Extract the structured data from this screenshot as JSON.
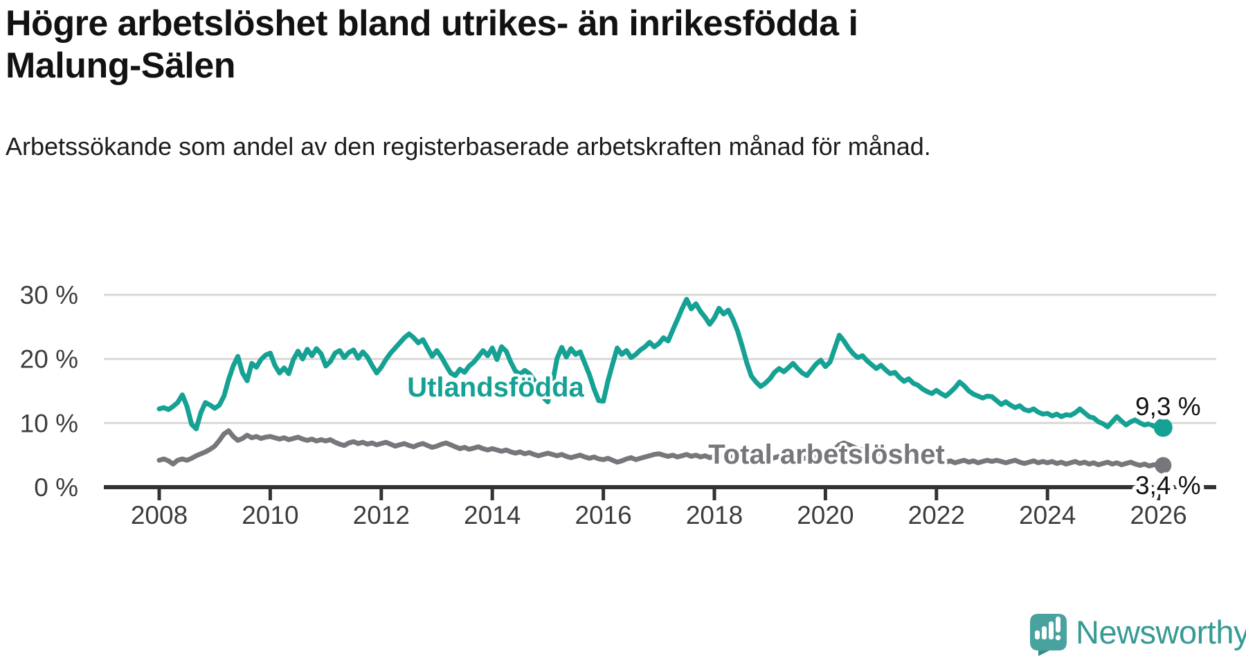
{
  "title": "Högre arbetslöshet bland utrikes- än inrikesfödda i Malung-Sälen",
  "subtitle": "Arbetssökande som andel av den registerbaserade arbetskraften månad för månad.",
  "branding": {
    "logo_text": "Newsworthy",
    "logo_icon": "newsworthy-chart-bubble-icon",
    "wordmark_color": "#379a95",
    "icon_color": "#48a29e",
    "icon_shadow_color": "#3b8d89"
  },
  "chart_data": {
    "type": "line",
    "title": "Högre arbetslöshet bland utrikes- än inrikesfödda i Malung-Sälen",
    "subtitle": "Arbetssökande som andel av den registerbaserade arbetskraften månad för månad.",
    "xlabel": "",
    "ylabel": "",
    "x_start_year": 2008.0,
    "x_step_months": 1,
    "x_end_year": 2026.083,
    "x_tick_values": [
      2008,
      2010,
      2012,
      2014,
      2016,
      2018,
      2020,
      2022,
      2024,
      2026
    ],
    "x_tick_labels": [
      "2008",
      "2010",
      "2012",
      "2014",
      "2016",
      "2018",
      "2020",
      "2022",
      "2024",
      "2026"
    ],
    "y_tick_values": [
      0,
      10,
      20,
      30
    ],
    "y_tick_labels": [
      "0 %",
      "10 %",
      "20 %",
      "30 %"
    ],
    "ylim": [
      0,
      31
    ],
    "grid": "horizontal",
    "legend_position": "inline-labels",
    "colors": {
      "teal_series": "#15a193",
      "gray_series": "#76767b",
      "gridline": "#d8d8d8",
      "axis": "#333333",
      "tick_text": "#3c3c3c",
      "value_text": "#111111"
    },
    "series": [
      {
        "name": "Utlandsfödda",
        "color": "#15a193",
        "end_label": "9,3 %",
        "end_dot": true,
        "values": [
          12.2,
          12.4,
          12.1,
          12.6,
          13.2,
          14.4,
          12.6,
          9.8,
          9.1,
          11.6,
          13.2,
          12.8,
          12.3,
          12.8,
          14.2,
          16.8,
          18.9,
          20.4,
          17.8,
          16.6,
          19.3,
          18.7,
          19.9,
          20.6,
          20.9,
          19.0,
          17.8,
          18.6,
          17.7,
          19.9,
          21.2,
          20.0,
          21.5,
          20.5,
          21.6,
          20.8,
          18.9,
          19.6,
          20.9,
          21.3,
          20.2,
          21.0,
          21.4,
          20.1,
          21.1,
          20.3,
          19.0,
          17.8,
          18.7,
          19.9,
          20.9,
          21.7,
          22.5,
          23.3,
          23.9,
          23.3,
          22.5,
          23.0,
          21.7,
          20.4,
          21.3,
          20.3,
          19.0,
          17.8,
          17.4,
          18.4,
          17.9,
          18.9,
          19.5,
          20.4,
          21.3,
          20.5,
          21.7,
          19.9,
          21.9,
          21.2,
          19.5,
          18.1,
          17.6,
          18.2,
          17.7,
          16.7,
          15.3,
          14.0,
          13.3,
          16.2,
          20.1,
          21.8,
          20.3,
          21.6,
          20.7,
          21.1,
          19.3,
          17.5,
          15.3,
          13.5,
          13.4,
          16.6,
          19.2,
          21.7,
          20.7,
          21.3,
          20.2,
          20.7,
          21.4,
          21.9,
          22.6,
          21.9,
          22.4,
          23.3,
          22.8,
          24.5,
          26.1,
          27.8,
          29.3,
          27.8,
          28.6,
          27.4,
          26.5,
          25.4,
          26.4,
          27.9,
          27.0,
          27.6,
          26.2,
          24.4,
          22.0,
          19.4,
          17.3,
          16.4,
          15.7,
          16.2,
          16.9,
          17.9,
          18.5,
          18.0,
          18.6,
          19.3,
          18.5,
          17.8,
          17.4,
          18.3,
          19.2,
          19.8,
          18.8,
          19.5,
          21.6,
          23.7,
          22.8,
          21.7,
          20.8,
          20.2,
          20.5,
          19.7,
          19.1,
          18.5,
          19.0,
          18.3,
          17.7,
          17.9,
          17.1,
          16.5,
          16.9,
          16.2,
          15.9,
          15.3,
          14.9,
          14.6,
          15.1,
          14.6,
          14.2,
          14.8,
          15.5,
          16.4,
          15.8,
          15.0,
          14.5,
          14.2,
          13.9,
          14.2,
          14.1,
          13.5,
          12.9,
          13.3,
          12.8,
          12.4,
          12.7,
          12.1,
          11.9,
          12.2,
          11.7,
          11.4,
          11.5,
          11.1,
          11.4,
          11.0,
          11.3,
          11.2,
          11.6,
          12.2,
          11.6,
          11.0,
          10.8,
          10.2,
          9.9,
          9.4,
          10.2,
          11.0,
          10.3,
          9.7,
          10.2,
          10.5,
          10.0,
          9.7,
          9.9,
          9.5,
          9.4,
          9.3
        ]
      },
      {
        "name": "Total arbetslöshet",
        "color": "#76767b",
        "end_label": "3,4 %",
        "end_dot": true,
        "values": [
          4.2,
          4.4,
          4.1,
          3.6,
          4.2,
          4.4,
          4.2,
          4.5,
          4.9,
          5.2,
          5.5,
          5.9,
          6.4,
          7.3,
          8.3,
          8.8,
          7.9,
          7.3,
          7.6,
          8.1,
          7.7,
          7.9,
          7.6,
          7.8,
          7.9,
          7.7,
          7.5,
          7.7,
          7.4,
          7.6,
          7.8,
          7.5,
          7.3,
          7.5,
          7.2,
          7.4,
          7.2,
          7.4,
          7.0,
          6.7,
          6.5,
          6.9,
          7.1,
          6.8,
          7.0,
          6.7,
          6.9,
          6.6,
          6.8,
          7.0,
          6.7,
          6.4,
          6.6,
          6.8,
          6.5,
          6.3,
          6.6,
          6.8,
          6.5,
          6.2,
          6.4,
          6.7,
          6.9,
          6.6,
          6.3,
          6.0,
          6.2,
          5.9,
          6.1,
          6.3,
          6.0,
          5.8,
          6.0,
          5.8,
          5.6,
          5.8,
          5.5,
          5.3,
          5.5,
          5.2,
          5.4,
          5.1,
          4.9,
          5.1,
          5.3,
          5.1,
          4.9,
          5.1,
          4.8,
          4.6,
          4.8,
          5.0,
          4.7,
          4.5,
          4.7,
          4.4,
          4.3,
          4.5,
          4.2,
          3.9,
          4.1,
          4.4,
          4.6,
          4.3,
          4.5,
          4.7,
          4.9,
          5.1,
          5.2,
          5.0,
          4.8,
          5.0,
          4.7,
          4.9,
          5.1,
          4.8,
          5.0,
          4.7,
          4.9,
          4.6,
          4.8,
          5.0,
          4.7,
          4.9,
          4.6,
          4.4,
          4.6,
          4.3,
          4.5,
          4.2,
          4.4,
          4.6,
          4.4,
          4.6,
          4.8,
          4.5,
          4.7,
          4.9,
          4.6,
          4.4,
          4.6,
          4.8,
          5.0,
          5.2,
          5.0,
          5.2,
          5.9,
          6.6,
          6.9,
          6.6,
          6.3,
          6.0,
          5.8,
          5.6,
          5.4,
          5.2,
          5.4,
          5.2,
          5.0,
          4.8,
          4.6,
          4.8,
          4.5,
          4.3,
          4.5,
          4.2,
          4.0,
          4.2,
          4.0,
          4.2,
          3.9,
          4.1,
          3.8,
          4.0,
          4.2,
          3.9,
          4.1,
          3.8,
          4.0,
          4.2,
          4.0,
          4.2,
          4.0,
          3.8,
          4.0,
          4.2,
          3.9,
          3.7,
          3.9,
          4.1,
          3.8,
          4.0,
          3.8,
          4.0,
          3.7,
          3.9,
          3.6,
          3.8,
          4.0,
          3.7,
          3.9,
          3.6,
          3.8,
          3.5,
          3.7,
          3.9,
          3.6,
          3.8,
          3.5,
          3.7,
          3.9,
          3.6,
          3.4,
          3.6,
          3.3,
          3.5,
          3.5,
          3.4
        ]
      }
    ]
  }
}
